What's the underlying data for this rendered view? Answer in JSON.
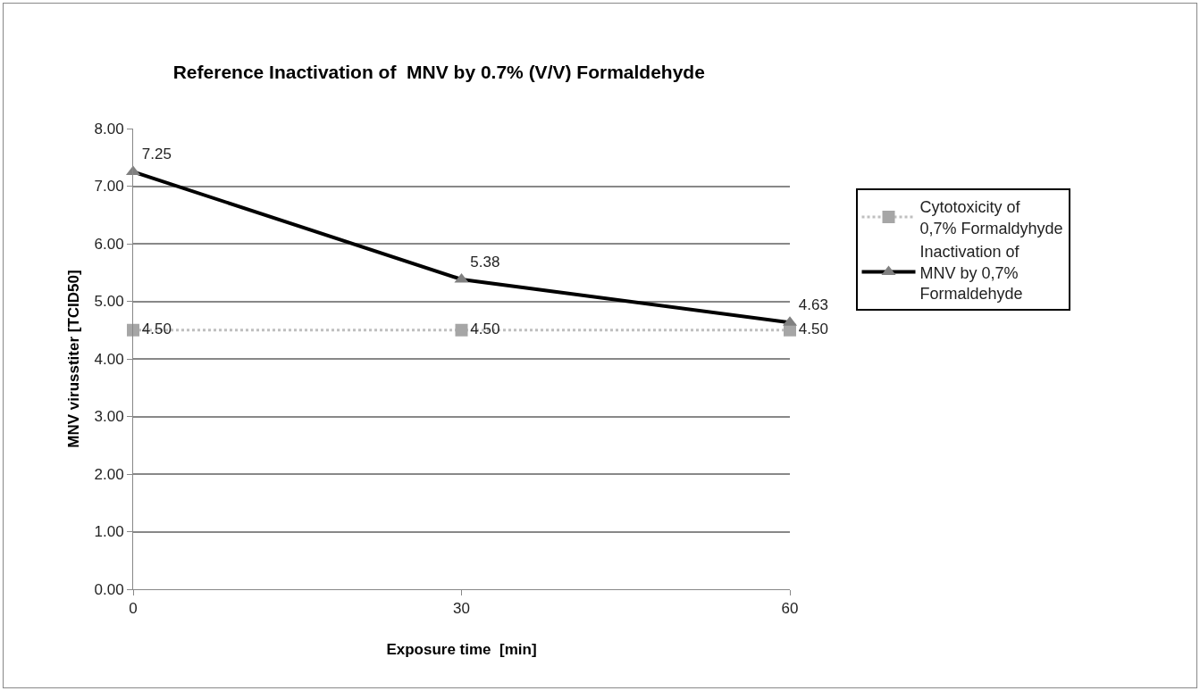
{
  "chart_data": {
    "type": "line",
    "title": "Reference Inactivation of  MNV by 0.7% (V/V) Formaldehyde",
    "xlabel": "Exposure time  [min]",
    "ylabel": "MNV virusstiter [TCID50]",
    "categories": [
      "0",
      "30",
      "60"
    ],
    "series": [
      {
        "name": "Cytotoxicity of 0,7% Formaldyhyde",
        "color": "#bfbfbf",
        "colors": [
          "#a6a6a6",
          "#a6a6a6",
          "#a6a6a6"
        ],
        "values": [
          4.5,
          4.5,
          4.5
        ],
        "value_labels": [
          "4.50",
          "4.50",
          "4.50"
        ],
        "marker": "square",
        "line_style": "dotted"
      },
      {
        "name": "Inactivation of MNV by 0,7% Formaldehyde",
        "color": "#000000",
        "colors": [
          "#808080",
          "#808080",
          "#808080"
        ],
        "values": [
          7.25,
          5.38,
          4.63
        ],
        "value_labels": [
          "7.25",
          "5.38",
          "4.63"
        ],
        "marker": "triangle",
        "line_style": "solid"
      }
    ],
    "ylim": [
      0,
      8
    ],
    "yticks": [
      {
        "value": 0,
        "label": "0.00"
      },
      {
        "value": 1,
        "label": "1.00"
      },
      {
        "value": 2,
        "label": "2.00"
      },
      {
        "value": 3,
        "label": "3.00"
      },
      {
        "value": 4,
        "label": "4.00"
      },
      {
        "value": 5,
        "label": "5.00"
      },
      {
        "value": 6,
        "label": "6.00"
      },
      {
        "value": 7,
        "label": "7.00"
      },
      {
        "value": 8,
        "label": "8.00"
      }
    ],
    "grid": "y",
    "legend": "right"
  }
}
